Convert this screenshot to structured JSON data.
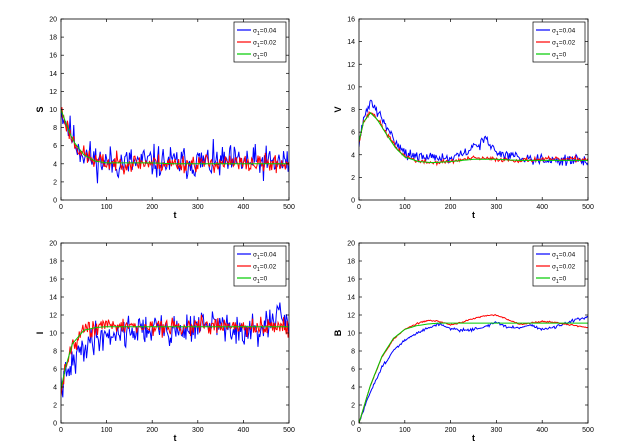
{
  "colors": {
    "sigma_004": "#0000ff",
    "sigma_002": "#ff0000",
    "sigma_0": "#00cc00",
    "axes": "#000000"
  },
  "legend": {
    "placement": "top-right",
    "entries": [
      {
        "symbol": "σ",
        "sub": "1",
        "value": "=0.04",
        "color_key": "sigma_004"
      },
      {
        "symbol": "σ",
        "sub": "1",
        "value": "=0.02",
        "color_key": "sigma_002"
      },
      {
        "symbol": "σ",
        "sub": "1",
        "value": "=0",
        "color_key": "sigma_0"
      }
    ]
  },
  "chart_data": [
    {
      "type": "line",
      "ylabel": "S",
      "xlabel": "t",
      "xlim": [
        0,
        500
      ],
      "ylim": [
        0,
        20
      ],
      "xticks": [
        0,
        100,
        200,
        300,
        400,
        500
      ],
      "yticks": [
        0,
        2,
        4,
        6,
        8,
        10,
        12,
        14,
        16,
        18,
        20
      ],
      "grid": false,
      "series": [
        {
          "name": "σ1=0.04",
          "color_key": "sigma_004",
          "noise": 1.4,
          "seed": 11,
          "x": [
            0,
            10,
            20,
            30,
            50,
            75,
            100,
            150,
            200,
            250,
            300,
            350,
            400,
            450,
            500
          ],
          "y": [
            10,
            8.7,
            7.5,
            6.4,
            5.1,
            4.4,
            4.1,
            4.1,
            4.2,
            4.1,
            4.2,
            4.1,
            4.2,
            4.1,
            4.1
          ]
        },
        {
          "name": "σ1=0.02",
          "color_key": "sigma_002",
          "noise": 0.75,
          "seed": 23,
          "x": [
            0,
            10,
            20,
            30,
            50,
            75,
            100,
            150,
            200,
            250,
            300,
            350,
            400,
            450,
            500
          ],
          "y": [
            10,
            8.6,
            7.3,
            6.3,
            5.0,
            4.3,
            4.1,
            4.1,
            4.1,
            4.0,
            4.1,
            4.1,
            4.0,
            4.0,
            4.0
          ]
        },
        {
          "name": "σ1=0",
          "color_key": "sigma_0",
          "noise": 0,
          "seed": 1,
          "x": [
            0,
            10,
            20,
            30,
            50,
            75,
            100,
            150,
            200,
            250,
            300,
            350,
            400,
            450,
            500
          ],
          "y": [
            10,
            8.6,
            7.3,
            6.3,
            5.0,
            4.3,
            4.1,
            4.1,
            4.1,
            4.0,
            4.0,
            4.0,
            4.0,
            4.0,
            4.0
          ]
        }
      ]
    },
    {
      "type": "line",
      "ylabel": "V",
      "xlabel": "t",
      "xlim": [
        0,
        500
      ],
      "ylim": [
        0,
        16
      ],
      "xticks": [
        0,
        100,
        200,
        300,
        400,
        500
      ],
      "yticks": [
        0,
        2,
        4,
        6,
        8,
        10,
        12,
        14,
        16
      ],
      "grid": false,
      "series": [
        {
          "name": "σ1=0.04",
          "color_key": "sigma_004",
          "noise": 0.35,
          "seed": 31,
          "x": [
            0,
            10,
            25,
            40,
            60,
            80,
            100,
            130,
            160,
            200,
            230,
            260,
            275,
            300,
            350,
            400,
            450,
            500
          ],
          "y": [
            5.2,
            7.0,
            8.8,
            7.8,
            6.4,
            5.2,
            4.2,
            3.7,
            3.9,
            3.6,
            4.1,
            4.9,
            5.4,
            4.2,
            3.8,
            3.6,
            3.5,
            3.5
          ]
        },
        {
          "name": "σ1=0.02",
          "color_key": "sigma_002",
          "noise": 0.15,
          "seed": 37,
          "x": [
            0,
            10,
            25,
            40,
            60,
            80,
            100,
            130,
            160,
            200,
            250,
            300,
            350,
            400,
            450,
            500
          ],
          "y": [
            5.2,
            6.9,
            7.8,
            7.2,
            5.9,
            4.7,
            3.9,
            3.4,
            3.3,
            3.4,
            3.7,
            3.6,
            3.5,
            3.6,
            3.6,
            3.6
          ]
        },
        {
          "name": "σ1=0",
          "color_key": "sigma_0",
          "noise": 0,
          "seed": 1,
          "x": [
            0,
            10,
            25,
            40,
            60,
            80,
            100,
            130,
            160,
            200,
            250,
            300,
            350,
            400,
            450,
            500
          ],
          "y": [
            5.2,
            6.9,
            7.7,
            7.1,
            5.8,
            4.6,
            3.8,
            3.4,
            3.3,
            3.4,
            3.6,
            3.6,
            3.5,
            3.5,
            3.5,
            3.5
          ]
        }
      ]
    },
    {
      "type": "line",
      "ylabel": "I",
      "xlabel": "t",
      "xlim": [
        0,
        500
      ],
      "ylim": [
        0,
        20
      ],
      "xticks": [
        0,
        100,
        200,
        300,
        400,
        500
      ],
      "yticks": [
        0,
        2,
        4,
        6,
        8,
        10,
        12,
        14,
        16,
        18,
        20
      ],
      "grid": false,
      "series": [
        {
          "name": "σ1=0.04",
          "color_key": "sigma_004",
          "noise": 1.3,
          "seed": 41,
          "x": [
            0,
            10,
            25,
            50,
            75,
            100,
            150,
            200,
            250,
            300,
            350,
            400,
            450,
            480,
            500
          ],
          "y": [
            4.0,
            5.0,
            6.5,
            8.5,
            9.5,
            9.8,
            10.3,
            10.5,
            10.2,
            10.8,
            11.0,
            9.8,
            10.5,
            12.0,
            10.6
          ]
        },
        {
          "name": "σ1=0.02",
          "color_key": "sigma_002",
          "noise": 0.75,
          "seed": 43,
          "x": [
            0,
            10,
            25,
            50,
            75,
            100,
            150,
            200,
            250,
            300,
            350,
            400,
            450,
            500
          ],
          "y": [
            3.8,
            6.2,
            8.8,
            10.3,
            10.6,
            10.7,
            10.8,
            10.7,
            10.6,
            10.7,
            10.8,
            10.6,
            10.7,
            10.6
          ]
        },
        {
          "name": "σ1=0",
          "color_key": "sigma_0",
          "noise": 0,
          "seed": 1,
          "x": [
            0,
            10,
            25,
            50,
            75,
            100,
            150,
            200,
            250,
            300,
            350,
            400,
            450,
            500
          ],
          "y": [
            3.8,
            6.2,
            8.8,
            10.3,
            10.6,
            10.7,
            10.7,
            10.7,
            10.7,
            10.7,
            10.7,
            10.7,
            10.7,
            10.7
          ]
        }
      ]
    },
    {
      "type": "line",
      "ylabel": "B",
      "xlabel": "t",
      "xlim": [
        0,
        500
      ],
      "ylim": [
        0,
        20
      ],
      "xticks": [
        0,
        100,
        200,
        300,
        400,
        500
      ],
      "yticks": [
        0,
        2,
        4,
        6,
        8,
        10,
        12,
        14,
        16,
        18,
        20
      ],
      "grid": false,
      "series": [
        {
          "name": "σ1=0.04",
          "color_key": "sigma_004",
          "noise": 0.12,
          "seed": 51,
          "x": [
            0,
            25,
            50,
            75,
            100,
            125,
            150,
            175,
            200,
            225,
            250,
            275,
            300,
            325,
            350,
            375,
            400,
            425,
            450,
            475,
            500
          ],
          "y": [
            0,
            3.5,
            6.2,
            8.0,
            9.2,
            9.9,
            10.6,
            11.0,
            10.5,
            10.3,
            10.4,
            10.7,
            11.2,
            10.6,
            10.6,
            10.9,
            10.4,
            10.6,
            11.0,
            11.5,
            11.7
          ]
        },
        {
          "name": "σ1=0.02",
          "color_key": "sigma_002",
          "noise": 0.06,
          "seed": 53,
          "x": [
            0,
            25,
            50,
            75,
            100,
            125,
            150,
            175,
            200,
            225,
            250,
            275,
            300,
            325,
            350,
            375,
            400,
            425,
            450,
            475,
            500
          ],
          "y": [
            0,
            4.2,
            7.3,
            9.3,
            10.4,
            11.0,
            11.4,
            11.3,
            10.9,
            11.2,
            11.6,
            11.9,
            12.0,
            11.5,
            11.0,
            11.1,
            11.3,
            11.2,
            11.0,
            10.8,
            10.6
          ]
        },
        {
          "name": "σ1=0",
          "color_key": "sigma_0",
          "noise": 0,
          "seed": 1,
          "x": [
            0,
            25,
            50,
            75,
            100,
            125,
            150,
            175,
            200,
            250,
            300,
            350,
            400,
            450,
            500
          ],
          "y": [
            0,
            4.2,
            7.4,
            9.4,
            10.4,
            10.8,
            11.0,
            11.1,
            11.1,
            11.1,
            11.1,
            11.1,
            11.1,
            11.1,
            11.1
          ]
        }
      ]
    }
  ]
}
